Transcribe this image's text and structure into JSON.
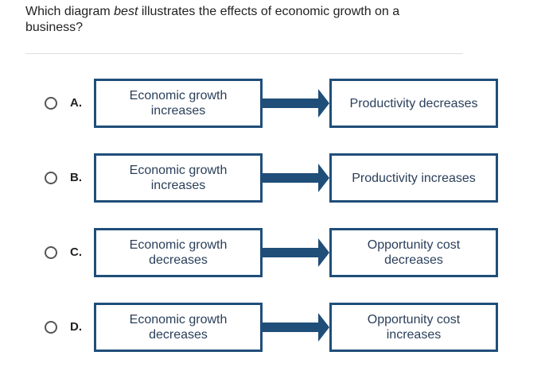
{
  "question": {
    "prefix": "Which diagram ",
    "emphasis": "best",
    "suffix": " illustrates the effects of economic growth on a business?"
  },
  "options": [
    {
      "letter": "A.",
      "cause": "Economic growth increases",
      "effect": "Productivity decreases"
    },
    {
      "letter": "B.",
      "cause": "Economic growth increases",
      "effect": "Productivity increases"
    },
    {
      "letter": "C.",
      "cause": "Economic growth decreases",
      "effect": "Opportunity cost decreases"
    },
    {
      "letter": "D.",
      "cause": "Economic growth decreases",
      "effect": "Opportunity cost increases"
    }
  ],
  "colors": {
    "box_border": "#1f4e79",
    "arrow": "#1f4e79",
    "text": "#2a3f5a"
  },
  "icons": {
    "radio": "radio-unselected-icon",
    "arrow": "right-arrow-icon"
  }
}
